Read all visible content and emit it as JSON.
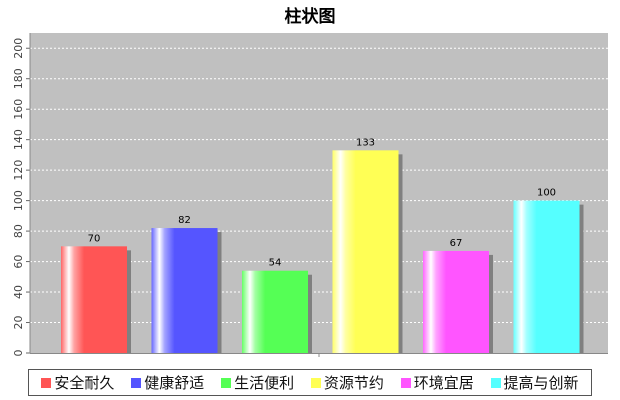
{
  "chart_data": {
    "type": "bar",
    "title": "柱状图",
    "categories": [
      "安全耐久",
      "健康舒适",
      "生活便利",
      "资源节约",
      "环境宜居",
      "提高与创新"
    ],
    "values": [
      70,
      82,
      54,
      133,
      67,
      100
    ],
    "colors": [
      "#ff5555",
      "#5555ff",
      "#55ff55",
      "#ffff55",
      "#ff55ff",
      "#55ffff"
    ],
    "ylim": [
      0,
      210
    ],
    "yticks": [
      0,
      20,
      40,
      60,
      80,
      100,
      120,
      140,
      160,
      180,
      200
    ],
    "grid": true,
    "plot_background": "#c0c0c0",
    "legend_position": "bottom"
  }
}
